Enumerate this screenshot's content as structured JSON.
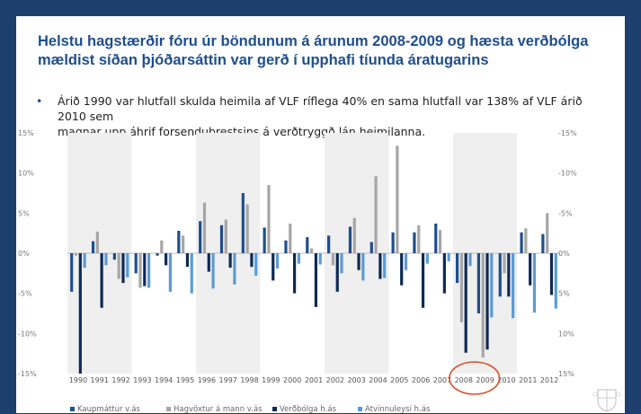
{
  "title": {
    "line1": "Helstu hagstærðir fóru úr böndunum á árunum  2008-2009 og hæsta verðbólga",
    "line2": "mældist síðan þjóðarsáttin var gerð í upphafi tíunda áratugarins"
  },
  "bullet": {
    "symbol": "•",
    "line1": "Árið 1990 var hlutfall skulda heimila af VLF ríflega 40% en sama hlutfall var 138% af VLF árið 2010 sem",
    "line2": "magnar upp áhrif forsendubrestsins á verðtryggð lán heimilanna."
  },
  "colors": {
    "background": "#1c3f6e",
    "title": "#1f4e8c",
    "shade": "#efefef",
    "highlight": "#d9502a"
  },
  "chart_data": {
    "type": "bar",
    "categories": [
      "1990",
      "1991",
      "1992",
      "1993",
      "1994",
      "1995",
      "1996",
      "1997",
      "1998",
      "1999",
      "2000",
      "2001",
      "2002",
      "2003",
      "2004",
      "2005",
      "2006",
      "2007",
      "2008",
      "2009",
      "2010",
      "2011",
      "2012"
    ],
    "left_axis": {
      "ticks": [
        15,
        10,
        5,
        0,
        -5,
        -10,
        -15
      ],
      "labels": [
        "15%",
        "10%",
        "5%",
        "0%",
        "-5%",
        "-10%",
        "-15%"
      ],
      "ylim": [
        -15,
        15
      ]
    },
    "right_axis": {
      "inverted": true,
      "ticks": [
        -15,
        -10,
        -5,
        0,
        5,
        10,
        15
      ],
      "labels": [
        "-15%",
        "-10%",
        "-5%",
        "0%",
        "5%",
        "10%",
        "15%"
      ],
      "ylim": [
        -15,
        15
      ]
    },
    "series": [
      {
        "name": "Kaupmáttur v.ás",
        "axis": "left",
        "inverted": false,
        "color": "#1f4e8c",
        "values": [
          -4.8,
          1.5,
          -0.8,
          -2.5,
          -0.3,
          2.8,
          4.0,
          3.5,
          7.5,
          3.2,
          1.6,
          2.0,
          2.2,
          3.3,
          1.4,
          2.6,
          2.6,
          3.7,
          -3.7,
          -7.5,
          -5.4,
          2.6,
          2.4
        ]
      },
      {
        "name": "Hagvöxtur á mann v.ás",
        "axis": "left",
        "inverted": false,
        "color": "#a6a6a6",
        "values": [
          -0.3,
          2.7,
          -3.2,
          -4.3,
          1.6,
          2.2,
          6.3,
          4.2,
          6.1,
          8.5,
          3.7,
          0.6,
          -1.5,
          4.4,
          9.6,
          13.4,
          3.5,
          2.9,
          -8.6,
          -13.0,
          -2.5,
          3.1,
          5.0
        ]
      },
      {
        "name": "Verðbólga h.ás",
        "axis": "right",
        "inverted": true,
        "color": "#0e2a55",
        "values": [
          15.0,
          6.8,
          3.7,
          4.1,
          1.5,
          1.7,
          2.3,
          1.8,
          1.7,
          3.4,
          5.0,
          6.7,
          4.8,
          2.1,
          3.2,
          4.0,
          6.8,
          5.0,
          12.4,
          12.0,
          5.4,
          4.0,
          5.2
        ]
      },
      {
        "name": "Atvinnuleysi h.ás",
        "axis": "right",
        "inverted": true,
        "color": "#5b9bd5",
        "values": [
          1.8,
          1.5,
          3.0,
          4.3,
          4.8,
          5.0,
          4.4,
          3.9,
          2.8,
          1.9,
          1.3,
          1.4,
          2.5,
          3.4,
          3.1,
          2.1,
          1.3,
          1.0,
          1.6,
          8.0,
          8.1,
          7.4,
          6.9
        ]
      }
    ],
    "shaded_periods": [
      [
        "1990",
        "1992"
      ],
      [
        "1996",
        "1998"
      ],
      [
        "2002",
        "2004"
      ],
      [
        "2008",
        "2010"
      ]
    ],
    "highlight": [
      "2008",
      "2009"
    ],
    "grid": false
  }
}
